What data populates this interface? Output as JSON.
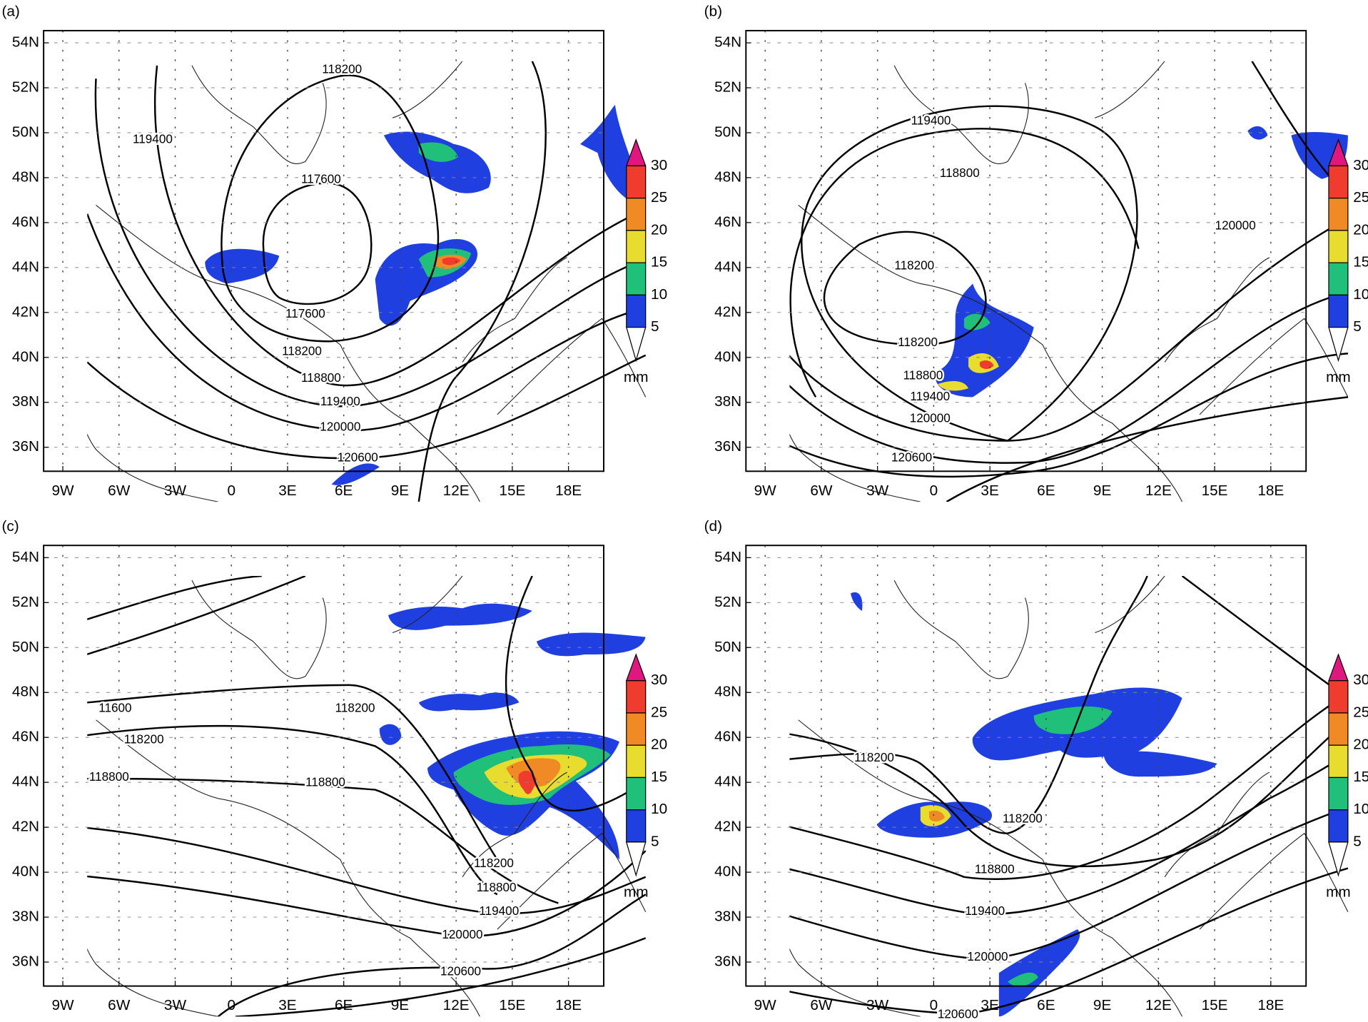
{
  "panels": [
    {
      "label": "(a)",
      "contour_labels": [
        "118200",
        "119400",
        "117600",
        "117600",
        "118200",
        "118800",
        "119400",
        "120000",
        "120600"
      ]
    },
    {
      "label": "(b)",
      "contour_labels": [
        "119400",
        "118800",
        "120000",
        "118200",
        "118200",
        "118800",
        "119400",
        "120000",
        "120600"
      ]
    },
    {
      "label": "(c)",
      "contour_labels": [
        "11600",
        "118200",
        "118200",
        "118800",
        "118800",
        "118200",
        "118800",
        "119400",
        "120000",
        "120600"
      ]
    },
    {
      "label": "(d)",
      "contour_labels": [
        "118200",
        "118200",
        "118800",
        "119400",
        "120000",
        "120600"
      ]
    }
  ],
  "lat_labels": [
    "54N",
    "52N",
    "50N",
    "48N",
    "46N",
    "44N",
    "42N",
    "40N",
    "38N",
    "36N"
  ],
  "lon_labels": [
    "9W",
    "6W",
    "3W",
    "0",
    "3E",
    "6E",
    "9E",
    "12E",
    "15E",
    "18E"
  ],
  "colorbar": {
    "ticks": [
      "30",
      "25",
      "20",
      "15",
      "10",
      "5"
    ],
    "colors": [
      "#e0177e",
      "#f03c2e",
      "#f08a25",
      "#e8dc2e",
      "#21c07a",
      "#1f3fe0",
      "#ffffff"
    ],
    "unit": "mm"
  }
}
